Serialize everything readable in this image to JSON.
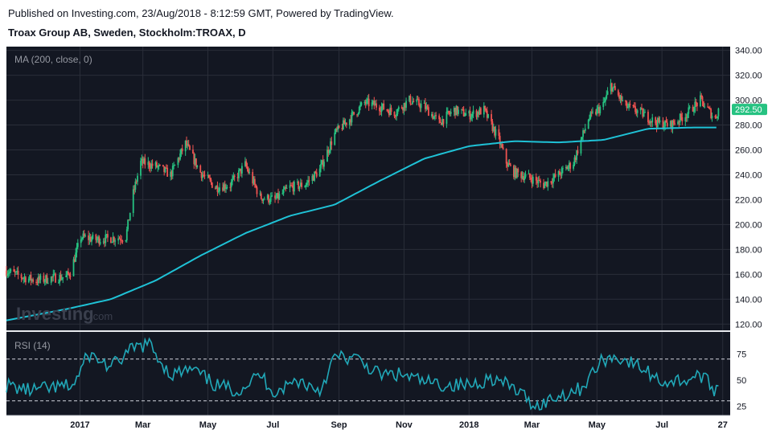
{
  "header": {
    "published": "Published on Investing.com, 23/Aug/2018 - 8:12:59 GMT, Powered by TradingView.",
    "symbol": "Troax Group AB, Sweden, Stockholm:TROAX, D"
  },
  "watermark": {
    "brand": "Investing",
    "suffix": ".com"
  },
  "colors": {
    "background": "#131722",
    "grid": "#2a2e39",
    "up": "#26c281",
    "down": "#ef5350",
    "ma": "#1fc2d6",
    "rsi": "#21a8b8",
    "price_label_bg": "#26c281"
  },
  "chart_data": [
    {
      "type": "candlestick",
      "pane_label": "MA (200, close, 0)",
      "ylim": [
        115,
        343
      ],
      "y_ticks": [
        "340.00",
        "320.00",
        "300.00",
        "280.00",
        "260.00",
        "240.00",
        "220.00",
        "200.00",
        "180.00",
        "160.00",
        "140.00",
        "120.00"
      ],
      "y_tick_values": [
        340,
        320,
        300,
        280,
        260,
        240,
        220,
        200,
        180,
        160,
        140,
        120
      ],
      "x_ticks": [
        "2017",
        "Mar",
        "May",
        "Jul",
        "Sep",
        "Nov",
        "2018",
        "Mar",
        "May",
        "Jul",
        "27"
      ],
      "x_tick_dates": [
        "2017-01-01",
        "2017-03-01",
        "2017-05-01",
        "2017-07-01",
        "2017-09-01",
        "2017-11-01",
        "2018-01-01",
        "2018-03-01",
        "2018-05-01",
        "2018-07-01",
        "2018-08-27"
      ],
      "x_range": [
        "2016-10-24",
        "2018-09-03"
      ],
      "last_price": "292.50",
      "last_value": 292.5,
      "close_series": {
        "dates": [
          "2016-10-24",
          "2016-11-07",
          "2016-11-21",
          "2016-12-05",
          "2016-12-19",
          "2016-12-23",
          "2017-01-02",
          "2017-01-16",
          "2017-01-30",
          "2017-02-13",
          "2017-02-20",
          "2017-02-27",
          "2017-03-13",
          "2017-03-27",
          "2017-04-10",
          "2017-04-24",
          "2017-05-08",
          "2017-05-22",
          "2017-06-05",
          "2017-06-19",
          "2017-07-03",
          "2017-07-17",
          "2017-07-31",
          "2017-08-14",
          "2017-08-28",
          "2017-09-11",
          "2017-09-25",
          "2017-10-09",
          "2017-10-23",
          "2017-11-06",
          "2017-11-20",
          "2017-12-04",
          "2017-12-18",
          "2018-01-01",
          "2018-01-15",
          "2018-01-29",
          "2018-02-05",
          "2018-02-12",
          "2018-02-26",
          "2018-03-12",
          "2018-03-26",
          "2018-04-09",
          "2018-04-23",
          "2018-05-07",
          "2018-05-14",
          "2018-05-28",
          "2018-06-11",
          "2018-06-25",
          "2018-07-09",
          "2018-07-23",
          "2018-08-06",
          "2018-08-20",
          "2018-08-23"
        ],
        "values": [
          163,
          158,
          155,
          157,
          158,
          162,
          190,
          188,
          189,
          190,
          225,
          250,
          247,
          240,
          265,
          242,
          230,
          232,
          248,
          222,
          220,
          230,
          232,
          244,
          273,
          285,
          298,
          295,
          290,
          300,
          295,
          282,
          292,
          288,
          292,
          268,
          250,
          242,
          238,
          232,
          240,
          250,
          285,
          296,
          312,
          295,
          290,
          282,
          280,
          288,
          300,
          285,
          292.5
        ]
      },
      "ma_series": {
        "name": "MA (200, close, 0)",
        "dates": [
          "2016-10-24",
          "2016-12-19",
          "2017-01-30",
          "2017-03-13",
          "2017-04-24",
          "2017-06-05",
          "2017-07-17",
          "2017-08-28",
          "2017-10-09",
          "2017-11-20",
          "2018-01-01",
          "2018-02-12",
          "2018-03-26",
          "2018-05-07",
          "2018-06-18",
          "2018-07-30",
          "2018-08-23"
        ],
        "values": [
          123,
          132,
          140,
          155,
          175,
          193,
          207,
          216,
          235,
          253,
          263,
          267,
          266,
          268,
          277,
          278,
          278
        ]
      }
    },
    {
      "type": "line",
      "pane_label": "RSI (14)",
      "ylim": [
        16,
        96
      ],
      "y_ticks": [
        "75",
        "50",
        "25"
      ],
      "y_tick_values": [
        75,
        50,
        25
      ],
      "band_levels": [
        70,
        30
      ],
      "x_ticks": [
        "2017",
        "Mar",
        "May",
        "Jul",
        "Sep",
        "Nov",
        "2018",
        "Mar",
        "May",
        "Jul",
        "27"
      ],
      "series": [
        {
          "dates": [
            "2016-10-24",
            "2016-11-14",
            "2016-12-05",
            "2016-12-26",
            "2017-01-09",
            "2017-01-30",
            "2017-02-20",
            "2017-03-06",
            "2017-03-27",
            "2017-04-17",
            "2017-05-08",
            "2017-05-29",
            "2017-06-19",
            "2017-07-03",
            "2017-07-24",
            "2017-08-14",
            "2017-08-28",
            "2017-09-18",
            "2017-10-09",
            "2017-10-30",
            "2017-11-20",
            "2017-12-11",
            "2018-01-01",
            "2018-01-22",
            "2018-02-12",
            "2018-03-05",
            "2018-03-26",
            "2018-04-16",
            "2018-05-07",
            "2018-05-21",
            "2018-06-11",
            "2018-07-02",
            "2018-07-23",
            "2018-08-06",
            "2018-08-20",
            "2018-08-23"
          ],
          "values": [
            45,
            40,
            42,
            45,
            75,
            62,
            80,
            85,
            55,
            60,
            45,
            40,
            55,
            38,
            50,
            40,
            72,
            70,
            55,
            55,
            48,
            45,
            45,
            52,
            42,
            25,
            35,
            42,
            70,
            72,
            62,
            48,
            50,
            55,
            40,
            50
          ]
        }
      ]
    }
  ]
}
